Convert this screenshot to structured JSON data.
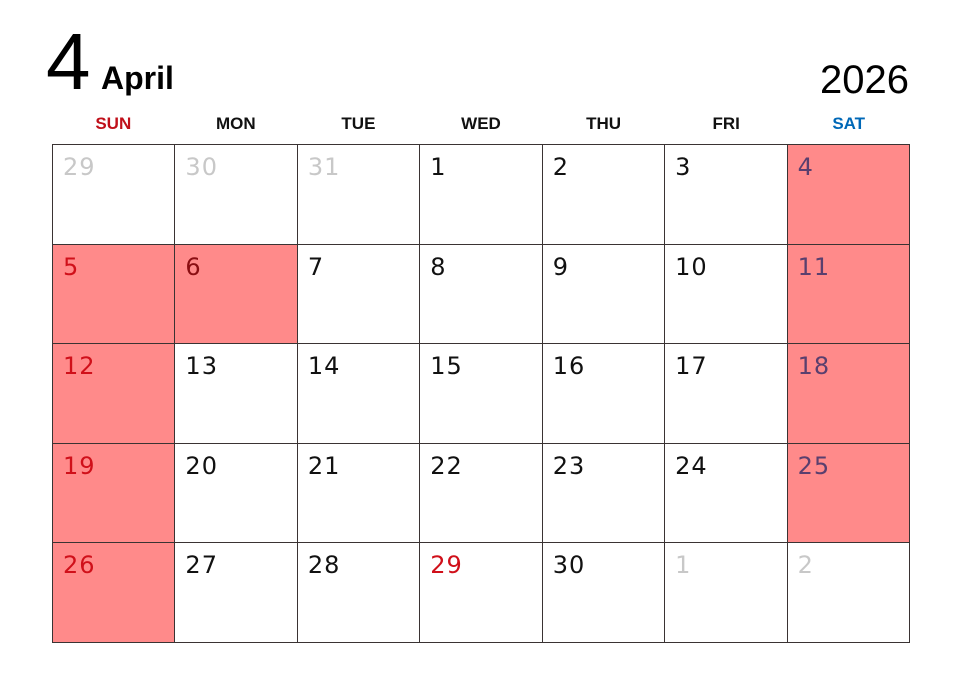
{
  "header": {
    "month_number": "4",
    "month_name": "April",
    "year": "2026"
  },
  "colors": {
    "highlight": "#ff8a8a",
    "sunday": "#d0101a",
    "saturday": "#0068b7",
    "other_month": "#c8c8c8"
  },
  "weekdays": [
    {
      "label": "SUN",
      "color": "#c0101a"
    },
    {
      "label": "MON",
      "color": "#111111"
    },
    {
      "label": "TUE",
      "color": "#111111"
    },
    {
      "label": "WED",
      "color": "#111111"
    },
    {
      "label": "THU",
      "color": "#111111"
    },
    {
      "label": "FRI",
      "color": "#111111"
    },
    {
      "label": "SAT",
      "color": "#0068b7"
    }
  ],
  "days": [
    {
      "day": "29",
      "kind": "other",
      "highlight": false
    },
    {
      "day": "30",
      "kind": "other",
      "highlight": false
    },
    {
      "day": "31",
      "kind": "other",
      "highlight": false
    },
    {
      "day": "1",
      "kind": "normal",
      "highlight": false
    },
    {
      "day": "2",
      "kind": "normal",
      "highlight": false
    },
    {
      "day": "3",
      "kind": "normal",
      "highlight": false
    },
    {
      "day": "4",
      "kind": "sat",
      "highlight": true
    },
    {
      "day": "5",
      "kind": "sun",
      "highlight": true
    },
    {
      "day": "6",
      "kind": "holiday",
      "highlight": true
    },
    {
      "day": "7",
      "kind": "normal",
      "highlight": false
    },
    {
      "day": "8",
      "kind": "normal",
      "highlight": false
    },
    {
      "day": "9",
      "kind": "normal",
      "highlight": false
    },
    {
      "day": "10",
      "kind": "normal",
      "highlight": false
    },
    {
      "day": "11",
      "kind": "sat",
      "highlight": true
    },
    {
      "day": "12",
      "kind": "sun",
      "highlight": true
    },
    {
      "day": "13",
      "kind": "normal",
      "highlight": false
    },
    {
      "day": "14",
      "kind": "normal",
      "highlight": false
    },
    {
      "day": "15",
      "kind": "normal",
      "highlight": false
    },
    {
      "day": "16",
      "kind": "normal",
      "highlight": false
    },
    {
      "day": "17",
      "kind": "normal",
      "highlight": false
    },
    {
      "day": "18",
      "kind": "sat",
      "highlight": true
    },
    {
      "day": "19",
      "kind": "sun",
      "highlight": true
    },
    {
      "day": "20",
      "kind": "normal",
      "highlight": false
    },
    {
      "day": "21",
      "kind": "normal",
      "highlight": false
    },
    {
      "day": "22",
      "kind": "normal",
      "highlight": false
    },
    {
      "day": "23",
      "kind": "normal",
      "highlight": false
    },
    {
      "day": "24",
      "kind": "normal",
      "highlight": false
    },
    {
      "day": "25",
      "kind": "sat",
      "highlight": true
    },
    {
      "day": "26",
      "kind": "sun",
      "highlight": true
    },
    {
      "day": "27",
      "kind": "normal",
      "highlight": false
    },
    {
      "day": "28",
      "kind": "normal",
      "highlight": false
    },
    {
      "day": "29",
      "kind": "holiday",
      "highlight": false
    },
    {
      "day": "30",
      "kind": "normal",
      "highlight": false
    },
    {
      "day": "1",
      "kind": "other",
      "highlight": false
    },
    {
      "day": "2",
      "kind": "other",
      "highlight": false
    }
  ]
}
